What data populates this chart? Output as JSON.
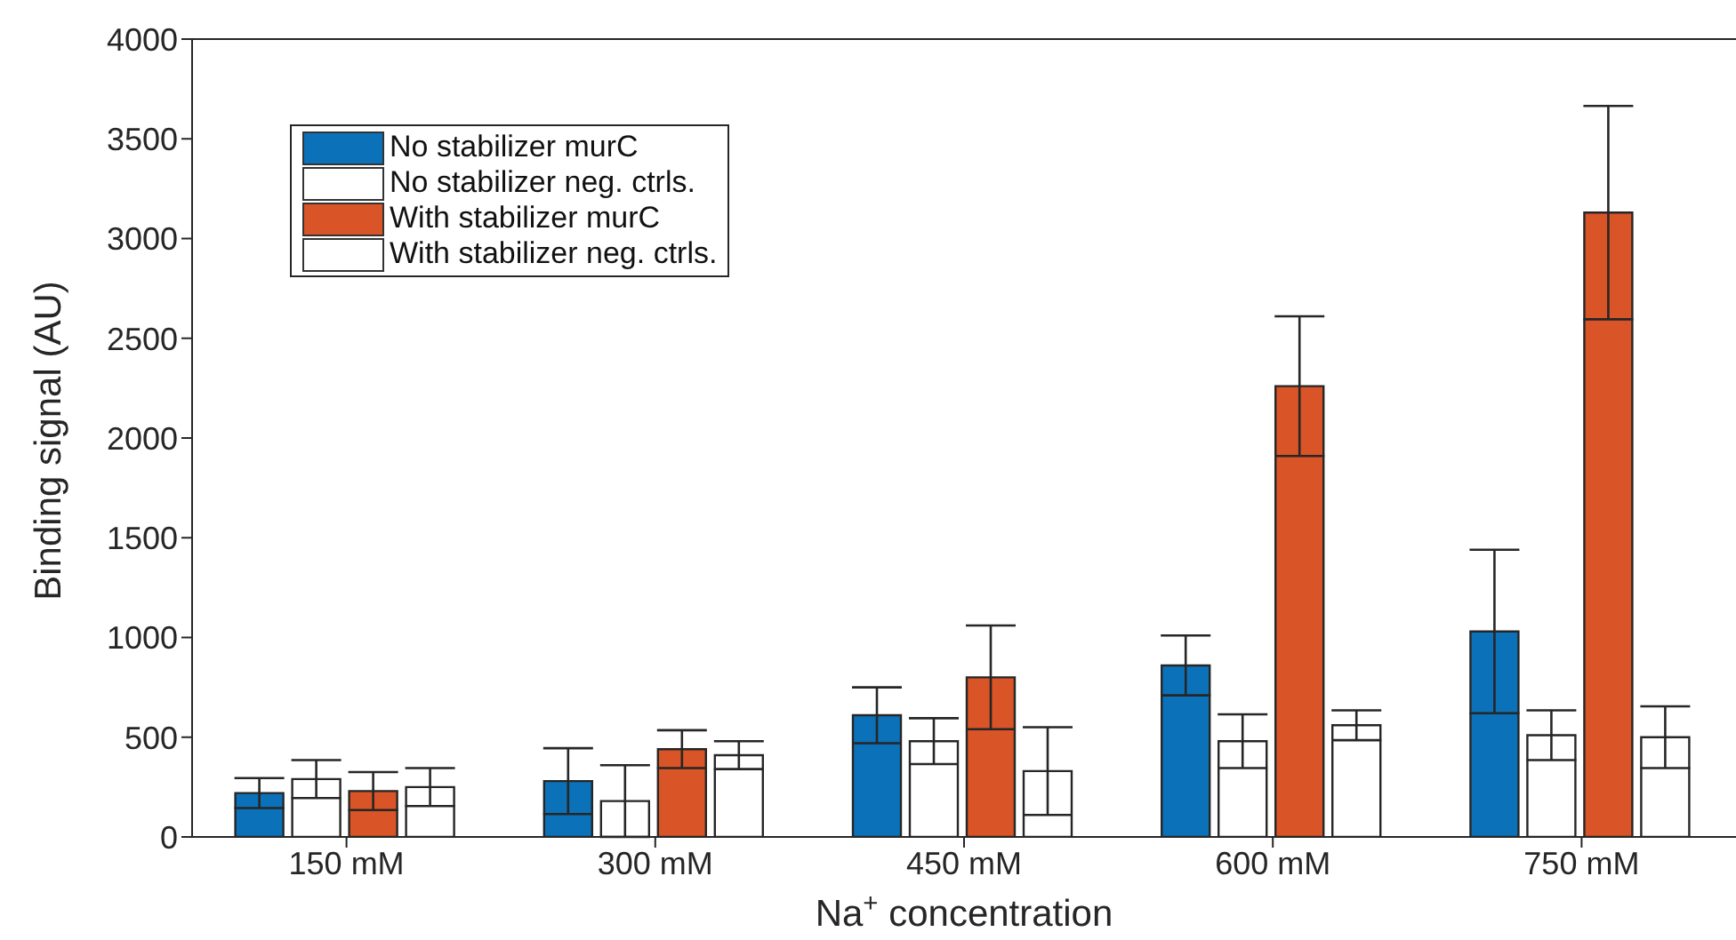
{
  "chart_data": {
    "type": "bar",
    "xlabel": "Na$^{+}$ concentration",
    "ylabel": "Binding signal (AU)",
    "categories": [
      "150 mM",
      "300 mM",
      "450 mM",
      "600 mM",
      "750 mM"
    ],
    "series": [
      {
        "name": "No stabilizer murC",
        "color": "#0b72b9",
        "values": [
          220,
          280,
          610,
          860,
          1030
        ],
        "errors": [
          75,
          165,
          140,
          150,
          410
        ]
      },
      {
        "name": "No stabilizer neg. ctrls.",
        "color": "#ffffff",
        "values": [
          290,
          180,
          480,
          480,
          510
        ],
        "errors": [
          95,
          180,
          115,
          135,
          125
        ]
      },
      {
        "name": "With stabilizer murC",
        "color": "#d95427",
        "values": [
          230,
          440,
          800,
          2260,
          3130
        ],
        "errors": [
          95,
          95,
          260,
          350,
          535
        ]
      },
      {
        "name": "With stabilizer neg. ctrls.",
        "color": "#ffffff",
        "values": [
          250,
          410,
          330,
          560,
          500
        ],
        "errors": [
          95,
          70,
          220,
          75,
          155
        ]
      }
    ],
    "ylim": [
      0,
      4000
    ],
    "yticks": [
      0,
      500,
      1000,
      1500,
      2000,
      2500,
      3000,
      3500,
      4000
    ],
    "grid": false,
    "legend": "top left"
  }
}
